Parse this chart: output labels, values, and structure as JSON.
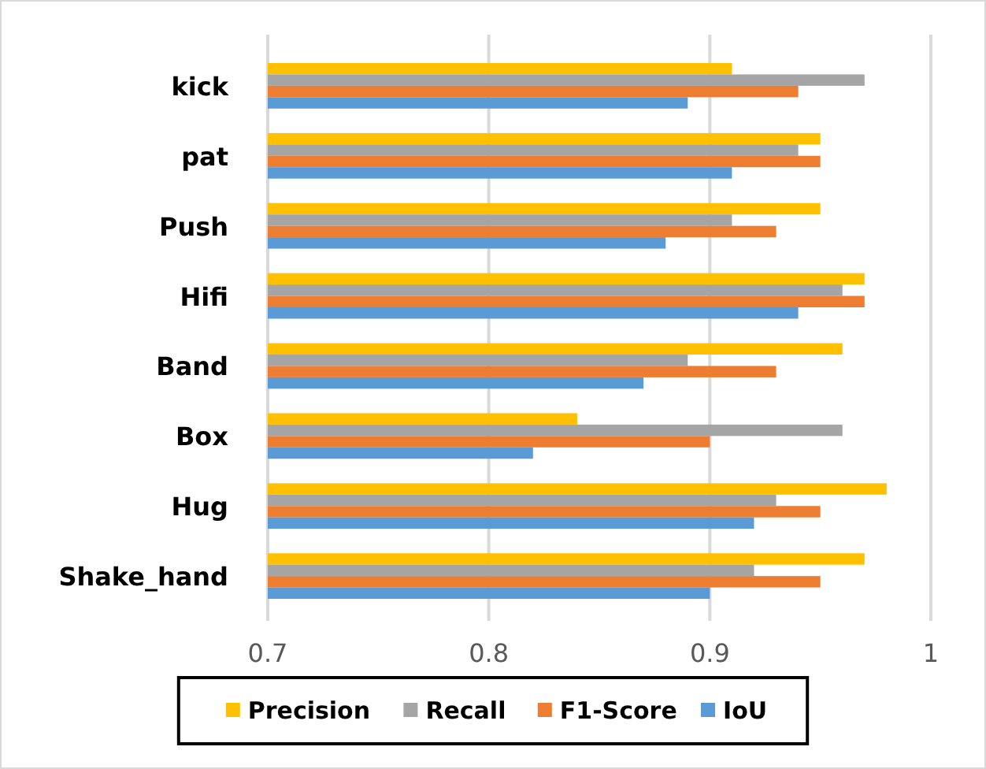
{
  "chart_data": {
    "type": "bar",
    "orientation": "horizontal",
    "categories": [
      "kick",
      "pat",
      "Push",
      "Hifi",
      "Band",
      "Box",
      "Hug",
      "Shake_hand"
    ],
    "series": [
      {
        "name": "Precision",
        "color": "#ffc000",
        "values": [
          0.91,
          0.95,
          0.95,
          0.97,
          0.96,
          0.84,
          0.98,
          0.97
        ]
      },
      {
        "name": "Recall",
        "color": "#a5a5a5",
        "values": [
          0.97,
          0.94,
          0.91,
          0.96,
          0.89,
          0.96,
          0.93,
          0.92
        ]
      },
      {
        "name": "F1-Score",
        "color": "#ed7d31",
        "values": [
          0.94,
          0.95,
          0.93,
          0.97,
          0.93,
          0.9,
          0.95,
          0.95
        ]
      },
      {
        "name": "IoU",
        "color": "#5b9bd5",
        "values": [
          0.89,
          0.91,
          0.88,
          0.94,
          0.87,
          0.82,
          0.92,
          0.9
        ]
      }
    ],
    "xlim": [
      0.7,
      1
    ],
    "xticks": [
      0.7,
      0.8,
      0.9,
      1
    ],
    "grid": "x",
    "legend": "bottom"
  }
}
